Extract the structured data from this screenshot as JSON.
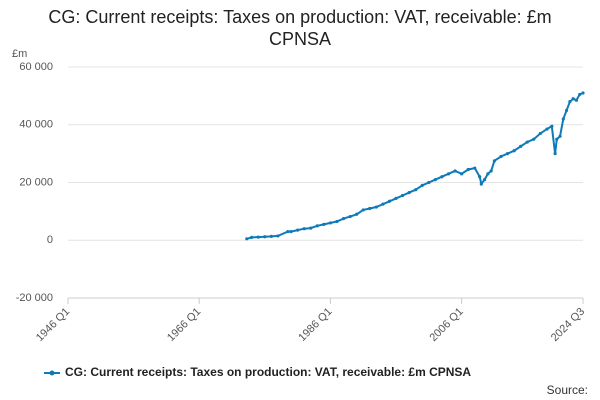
{
  "chart_data": {
    "type": "line",
    "title": "CG: Current receipts: Taxes on production: VAT, receivable: £m CPNSA",
    "y_label": "£m",
    "source": "Source:",
    "x": [
      1973.25,
      1974,
      1975,
      1976,
      1977,
      1978,
      1979.5,
      1980,
      1981,
      1982,
      1983,
      1984,
      1985,
      1986,
      1987,
      1988,
      1989,
      1990,
      1991,
      1992,
      1993,
      1994,
      1995,
      1996,
      1997,
      1998,
      1999,
      2000,
      2001,
      2002,
      2003,
      2004,
      2005,
      2006,
      2007,
      2008,
      2008.75,
      2009,
      2009.5,
      2010,
      2010.5,
      2011,
      2012,
      2013,
      2014,
      2015,
      2016,
      2017,
      2018,
      2019,
      2019.75,
      2020.25,
      2020.5,
      2021,
      2021.5,
      2022,
      2022.5,
      2023,
      2023.5,
      2024,
      2024.5
    ],
    "series": [
      {
        "name": "CG: Current receipts: Taxes on production: VAT, receivable: £m CPNSA",
        "color": "#0e7bb8",
        "values": [
          500,
          1000,
          1100,
          1200,
          1350,
          1500,
          3000,
          3000,
          3500,
          4000,
          4200,
          5000,
          5500,
          6000,
          6500,
          7500,
          8200,
          9000,
          10500,
          11000,
          11500,
          12500,
          13500,
          14500,
          15500,
          16500,
          17500,
          19000,
          20000,
          21000,
          22000,
          23000,
          24000,
          23000,
          24500,
          25000,
          22000,
          19500,
          21000,
          23000,
          24000,
          27500,
          29000,
          30000,
          31000,
          32500,
          34000,
          35000,
          37000,
          38500,
          39500,
          30000,
          35000,
          36000,
          42000,
          45000,
          48000,
          49000,
          48500,
          50500,
          51000
        ]
      }
    ],
    "xlim": [
      1946,
      2024.5
    ],
    "xticks": [
      {
        "value": 1946,
        "label": "1946 Q1"
      },
      {
        "value": 1966,
        "label": "1966 Q1"
      },
      {
        "value": 1986,
        "label": "1986 Q1"
      },
      {
        "value": 2006,
        "label": "2006 Q1"
      },
      {
        "value": 2024.5,
        "label": "2024 Q3"
      }
    ],
    "ylim": [
      -20000,
      60000
    ],
    "yticks": [
      {
        "value": -20000,
        "label": "-20 000"
      },
      {
        "value": 0,
        "label": "0"
      },
      {
        "value": 20000,
        "label": "20 000"
      },
      {
        "value": 40000,
        "label": "40 000"
      },
      {
        "value": 60000,
        "label": "60 000"
      }
    ],
    "grid": true
  }
}
